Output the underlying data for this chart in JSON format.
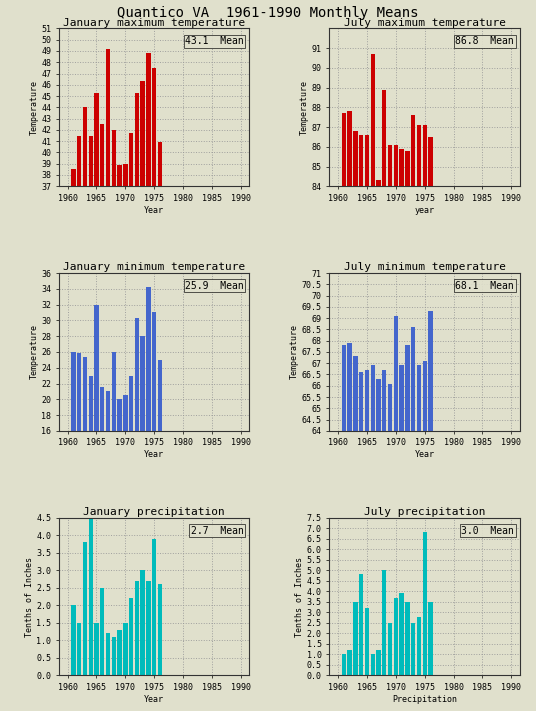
{
  "title": "Quantico VA  1961-1990 Monthly Means",
  "subplots": [
    {
      "title": "January maximum temperature",
      "ylabel": "Temperature",
      "xlabel": "Year",
      "mean_label": "43.1  Mean",
      "color": "#cc0000",
      "years": [
        1961,
        1962,
        1963,
        1964,
        1965,
        1966,
        1967,
        1968,
        1969,
        1970,
        1971,
        1972,
        1973,
        1974,
        1975,
        1976
      ],
      "values": [
        38.5,
        41.5,
        44.0,
        41.5,
        45.3,
        42.5,
        49.2,
        42.0,
        38.9,
        39.0,
        41.7,
        45.3,
        46.3,
        48.8,
        47.5,
        40.9
      ],
      "ylim": [
        37,
        51
      ],
      "yticks": [
        37,
        38,
        39,
        40,
        41,
        42,
        43,
        44,
        45,
        46,
        47,
        48,
        49,
        50,
        51
      ],
      "xticks": [
        1960,
        1965,
        1970,
        1975,
        1980,
        1985,
        1990
      ],
      "xlim": [
        1958.5,
        1991.5
      ]
    },
    {
      "title": "July maximum temperature",
      "ylabel": "Temperature",
      "xlabel": "year",
      "mean_label": "86.8  Mean",
      "color": "#cc0000",
      "years": [
        1961,
        1962,
        1963,
        1964,
        1965,
        1966,
        1967,
        1968,
        1969,
        1970,
        1971,
        1972,
        1973,
        1974,
        1975,
        1976
      ],
      "values": [
        87.7,
        87.8,
        86.8,
        86.6,
        86.6,
        90.7,
        84.3,
        88.9,
        86.1,
        86.1,
        85.9,
        85.8,
        87.6,
        87.1,
        87.1,
        86.5
      ],
      "ylim": [
        84,
        92
      ],
      "yticks": [
        84,
        85,
        86,
        87,
        88,
        89,
        90,
        91
      ],
      "xticks": [
        1960,
        1965,
        1970,
        1975,
        1980,
        1985,
        1990
      ],
      "xlim": [
        1958.5,
        1991.5
      ]
    },
    {
      "title": "January minimum temperature",
      "ylabel": "Temperature",
      "xlabel": "Year",
      "mean_label": "25.9  Mean",
      "color": "#4466cc",
      "years": [
        1961,
        1962,
        1963,
        1964,
        1965,
        1966,
        1967,
        1968,
        1969,
        1970,
        1971,
        1972,
        1973,
        1974,
        1975,
        1976
      ],
      "values": [
        26.0,
        25.9,
        25.3,
        23.0,
        32.0,
        21.5,
        21.0,
        26.0,
        20.0,
        20.5,
        23.0,
        30.3,
        28.0,
        34.2,
        31.0,
        25.0
      ],
      "ylim": [
        16,
        36
      ],
      "yticks": [
        16,
        18,
        20,
        22,
        24,
        26,
        28,
        30,
        32,
        34,
        36
      ],
      "xticks": [
        1960,
        1965,
        1970,
        1975,
        1980,
        1985,
        1990
      ],
      "xlim": [
        1958.5,
        1991.5
      ]
    },
    {
      "title": "July minimum temperature",
      "ylabel": "Temperature",
      "xlabel": "Year",
      "mean_label": "68.1  Mean",
      "color": "#4466cc",
      "years": [
        1961,
        1962,
        1963,
        1964,
        1965,
        1966,
        1967,
        1968,
        1969,
        1970,
        1971,
        1972,
        1973,
        1974,
        1975,
        1976
      ],
      "values": [
        67.8,
        67.9,
        67.3,
        66.6,
        66.7,
        66.9,
        66.3,
        66.7,
        66.1,
        69.1,
        66.9,
        67.8,
        68.6,
        66.9,
        67.1,
        69.3
      ],
      "ylim": [
        64,
        71
      ],
      "yticks": [
        64,
        64.5,
        65,
        65.5,
        66,
        66.5,
        67,
        67.5,
        68,
        68.5,
        69,
        69.5,
        70,
        70.5,
        71
      ],
      "xticks": [
        1960,
        1965,
        1970,
        1975,
        1980,
        1985,
        1990
      ],
      "xlim": [
        1958.5,
        1991.5
      ]
    },
    {
      "title": "January precipitation",
      "ylabel": "Tenths of Inches",
      "xlabel": "Year",
      "mean_label": "2.7  Mean",
      "color": "#00bbbb",
      "years": [
        1961,
        1962,
        1963,
        1964,
        1965,
        1966,
        1967,
        1968,
        1969,
        1970,
        1971,
        1972,
        1973,
        1974,
        1975,
        1976
      ],
      "values": [
        2.0,
        1.5,
        3.8,
        4.5,
        1.5,
        2.5,
        1.2,
        1.1,
        1.3,
        1.5,
        2.2,
        2.7,
        3.0,
        2.7,
        3.9,
        2.6
      ],
      "ylim": [
        0,
        4.5
      ],
      "yticks": [
        0.0,
        0.5,
        1.0,
        1.5,
        2.0,
        2.5,
        3.0,
        3.5,
        4.0,
        4.5
      ],
      "xticks": [
        1960,
        1965,
        1970,
        1975,
        1980,
        1985,
        1990
      ],
      "xlim": [
        1958.5,
        1991.5
      ]
    },
    {
      "title": "July precipitation",
      "ylabel": "Tenths of Inches",
      "xlabel": "Precipitation",
      "mean_label": "3.0  Mean",
      "color": "#00bbbb",
      "years": [
        1961,
        1962,
        1963,
        1964,
        1965,
        1966,
        1967,
        1968,
        1969,
        1970,
        1971,
        1972,
        1973,
        1974,
        1975,
        1976
      ],
      "values": [
        1.0,
        1.2,
        3.5,
        4.8,
        3.2,
        1.0,
        1.2,
        5.0,
        2.5,
        3.7,
        3.9,
        3.5,
        2.5,
        2.8,
        6.8,
        3.5
      ],
      "ylim": [
        0,
        7.5
      ],
      "yticks": [
        0.0,
        0.5,
        1.0,
        1.5,
        2.0,
        2.5,
        3.0,
        3.5,
        4.0,
        4.5,
        5.0,
        5.5,
        6.0,
        6.5,
        7.0,
        7.5
      ],
      "xticks": [
        1960,
        1965,
        1970,
        1975,
        1980,
        1985,
        1990
      ],
      "xlim": [
        1958.5,
        1991.5
      ]
    }
  ],
  "bg_color": "#e0e0cc",
  "plot_bg_color": "#e0e0cc",
  "grid_color": "#999999",
  "title_fontsize": 10,
  "subplot_title_fontsize": 8,
  "tick_fontsize": 6,
  "label_fontsize": 6,
  "mean_fontsize": 7
}
